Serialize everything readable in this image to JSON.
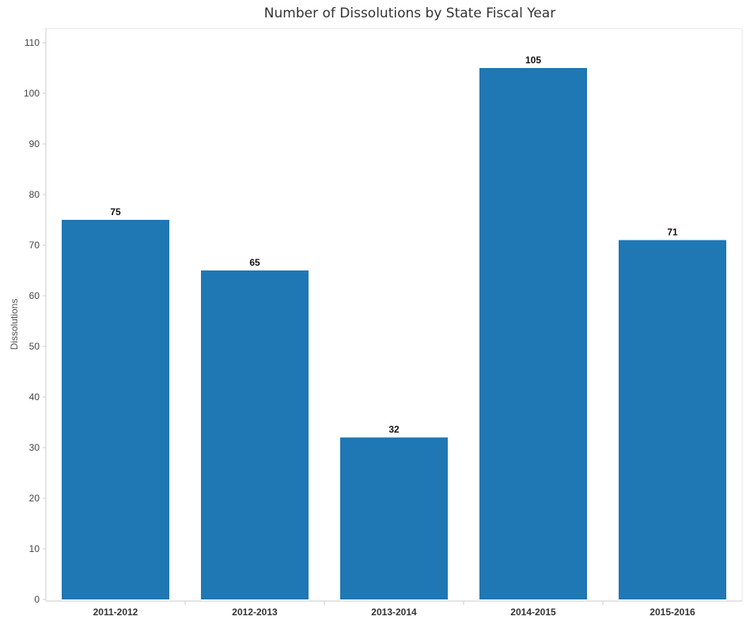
{
  "chart_data": {
    "type": "bar",
    "title": "Number of Dissolutions by State Fiscal Year",
    "xlabel": "",
    "ylabel": "Dissolutions",
    "categories": [
      "2011-2012",
      "2012-2013",
      "2013-2014",
      "2014-2015",
      "2015-2016"
    ],
    "values": [
      75,
      65,
      32,
      105,
      71
    ],
    "data_labels": [
      "75",
      "65",
      "32",
      "105",
      "71"
    ],
    "ylim": [
      0,
      110
    ],
    "yticks": [
      0,
      10,
      20,
      30,
      40,
      50,
      60,
      70,
      80,
      90,
      100,
      110
    ],
    "ytick_labels": [
      "0",
      "10",
      "20",
      "30",
      "40",
      "50",
      "60",
      "70",
      "80",
      "90",
      "100",
      "110"
    ],
    "grid": false,
    "legend": "none",
    "colors": {
      "bar": "#1f77b4",
      "axis": "#cccccc",
      "text": "#333333"
    }
  }
}
